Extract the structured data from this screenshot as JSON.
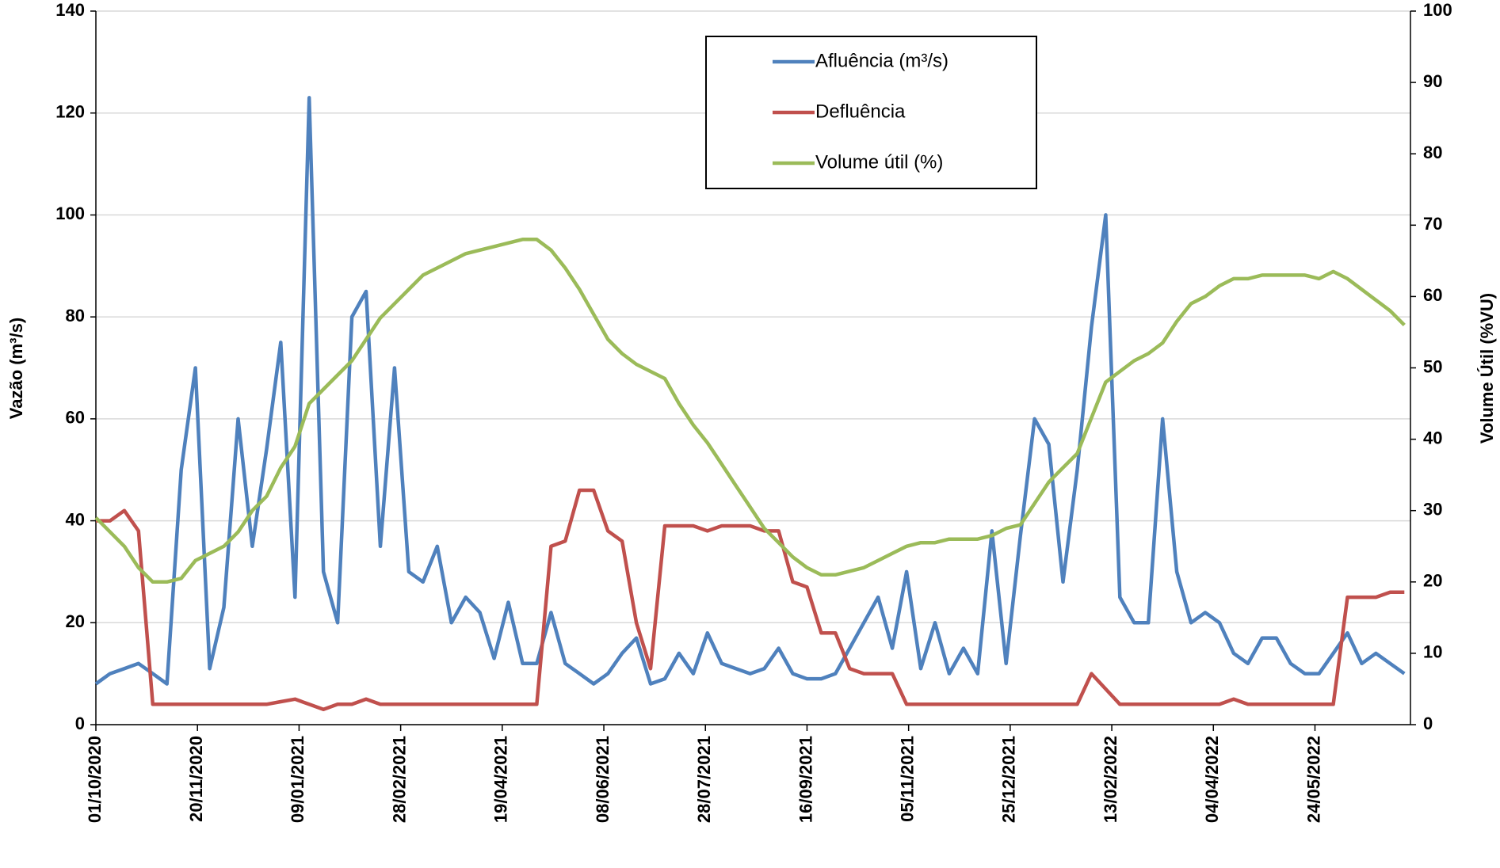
{
  "chart_data": {
    "type": "line",
    "y_label": "Vazão (m³/s)",
    "y2_label": "Volume Útil (%VU)",
    "x": [
      "01/10/2020",
      "08/10/2020",
      "15/10/2020",
      "22/10/2020",
      "29/10/2020",
      "05/11/2020",
      "12/11/2020",
      "19/11/2020",
      "26/11/2020",
      "03/12/2020",
      "10/12/2020",
      "17/12/2020",
      "24/12/2020",
      "31/12/2020",
      "07/01/2021",
      "14/01/2021",
      "21/01/2021",
      "28/01/2021",
      "04/02/2021",
      "11/02/2021",
      "18/02/2021",
      "25/02/2021",
      "04/03/2021",
      "11/03/2021",
      "18/03/2021",
      "25/03/2021",
      "01/04/2021",
      "08/04/2021",
      "15/04/2021",
      "22/04/2021",
      "29/04/2021",
      "06/05/2021",
      "13/05/2021",
      "20/05/2021",
      "27/05/2021",
      "03/06/2021",
      "10/06/2021",
      "17/06/2021",
      "24/06/2021",
      "01/07/2021",
      "08/07/2021",
      "15/07/2021",
      "22/07/2021",
      "29/07/2021",
      "05/08/2021",
      "12/08/2021",
      "19/08/2021",
      "26/08/2021",
      "02/09/2021",
      "09/09/2021",
      "16/09/2021",
      "23/09/2021",
      "30/09/2021",
      "07/10/2021",
      "14/10/2021",
      "21/10/2021",
      "28/10/2021",
      "04/11/2021",
      "11/11/2021",
      "18/11/2021",
      "25/11/2021",
      "02/12/2021",
      "09/12/2021",
      "16/12/2021",
      "23/12/2021",
      "30/12/2021",
      "06/01/2022",
      "13/01/2022",
      "20/01/2022",
      "27/01/2022",
      "03/02/2022",
      "10/02/2022",
      "17/02/2022",
      "24/02/2022",
      "03/03/2022",
      "10/03/2022",
      "17/03/2022",
      "24/03/2022",
      "31/03/2022",
      "07/04/2022",
      "14/04/2022",
      "21/04/2022",
      "28/04/2022",
      "05/05/2022",
      "12/05/2022",
      "19/05/2022",
      "26/05/2022",
      "02/06/2022",
      "09/06/2022",
      "16/06/2022",
      "23/06/2022",
      "30/06/2022",
      "07/07/2022"
    ],
    "series": [
      {
        "name": "Afluência (m³/s)",
        "color": "#4f81bd",
        "axis": "y",
        "values": [
          8,
          10,
          11,
          12,
          10,
          8,
          50,
          70,
          11,
          23,
          60,
          35,
          54,
          75,
          25,
          123,
          30,
          20,
          80,
          85,
          35,
          70,
          30,
          28,
          35,
          20,
          25,
          22,
          13,
          24,
          12,
          12,
          22,
          12,
          10,
          8,
          10,
          14,
          17,
          8,
          9,
          14,
          10,
          18,
          12,
          11,
          10,
          11,
          15,
          10,
          9,
          9,
          10,
          15,
          20,
          25,
          15,
          30,
          11,
          20,
          10,
          15,
          10,
          38,
          12,
          37,
          60,
          55,
          28,
          50,
          78,
          100,
          25,
          20,
          20,
          60,
          30,
          20,
          22,
          20,
          14,
          12,
          17,
          17,
          12,
          10,
          10,
          14,
          18,
          12,
          14,
          12,
          10
        ]
      },
      {
        "name": "Defluência",
        "color": "#c0504d",
        "axis": "y",
        "values": [
          40,
          40,
          42,
          38,
          4,
          4,
          4,
          4,
          4,
          4,
          4,
          4,
          4,
          4.5,
          5,
          4,
          3,
          4,
          4,
          5,
          4,
          4,
          4,
          4,
          4,
          4,
          4,
          4,
          4,
          4,
          4,
          4,
          35,
          36,
          46,
          46,
          38,
          36,
          20,
          11,
          39,
          39,
          39,
          38,
          39,
          39,
          39,
          38,
          38,
          28,
          27,
          18,
          18,
          11,
          10,
          10,
          10,
          4,
          4,
          4,
          4,
          4,
          4,
          4,
          4,
          4,
          4,
          4,
          4,
          4,
          10,
          7,
          4,
          4,
          4,
          4,
          4,
          4,
          4,
          4,
          5,
          4,
          4,
          4,
          4,
          4,
          4,
          4,
          25,
          25,
          25,
          26,
          26
        ]
      },
      {
        "name": "Volume útil (%)",
        "color": "#9bbb59",
        "axis": "y2",
        "values": [
          29,
          27,
          25,
          22,
          20,
          20,
          20.5,
          23,
          24,
          25,
          27,
          30,
          32,
          36,
          39,
          45,
          47,
          49,
          51,
          54,
          57,
          59,
          61,
          63,
          64,
          65,
          66,
          66.5,
          67,
          67.5,
          68,
          68,
          66.5,
          64,
          61,
          57.5,
          54,
          52,
          50.5,
          49.5,
          48.5,
          45,
          42,
          39.5,
          36.5,
          33.5,
          30.5,
          27.5,
          25.5,
          23.5,
          22,
          21,
          21,
          21.5,
          22,
          23,
          24,
          25,
          25.5,
          25.5,
          26,
          26,
          26,
          26.5,
          27.5,
          28,
          31,
          34,
          36,
          38,
          43,
          48,
          49.5,
          51,
          52,
          53.5,
          56.5,
          59,
          60,
          61.5,
          62.5,
          62.5,
          63,
          63,
          63,
          63,
          62.5,
          63.5,
          62.5,
          61,
          59.5,
          58,
          56
        ]
      }
    ],
    "xlim": [
      "01/10/2020",
      "10/07/2022"
    ],
    "xticks": [
      "01/10/2020",
      "20/11/2020",
      "09/01/2021",
      "28/02/2021",
      "19/04/2021",
      "08/06/2021",
      "28/07/2021",
      "16/09/2021",
      "05/11/2021",
      "25/12/2021",
      "13/02/2022",
      "04/04/2022",
      "24/05/2022"
    ],
    "ylim": [
      0,
      140
    ],
    "yticks": [
      0,
      20,
      40,
      60,
      80,
      100,
      120,
      140
    ],
    "y2lim": [
      0,
      100
    ],
    "y2ticks": [
      0,
      10,
      20,
      30,
      40,
      50,
      60,
      70,
      80,
      90,
      100
    ],
    "grid": true,
    "legend": "top"
  }
}
